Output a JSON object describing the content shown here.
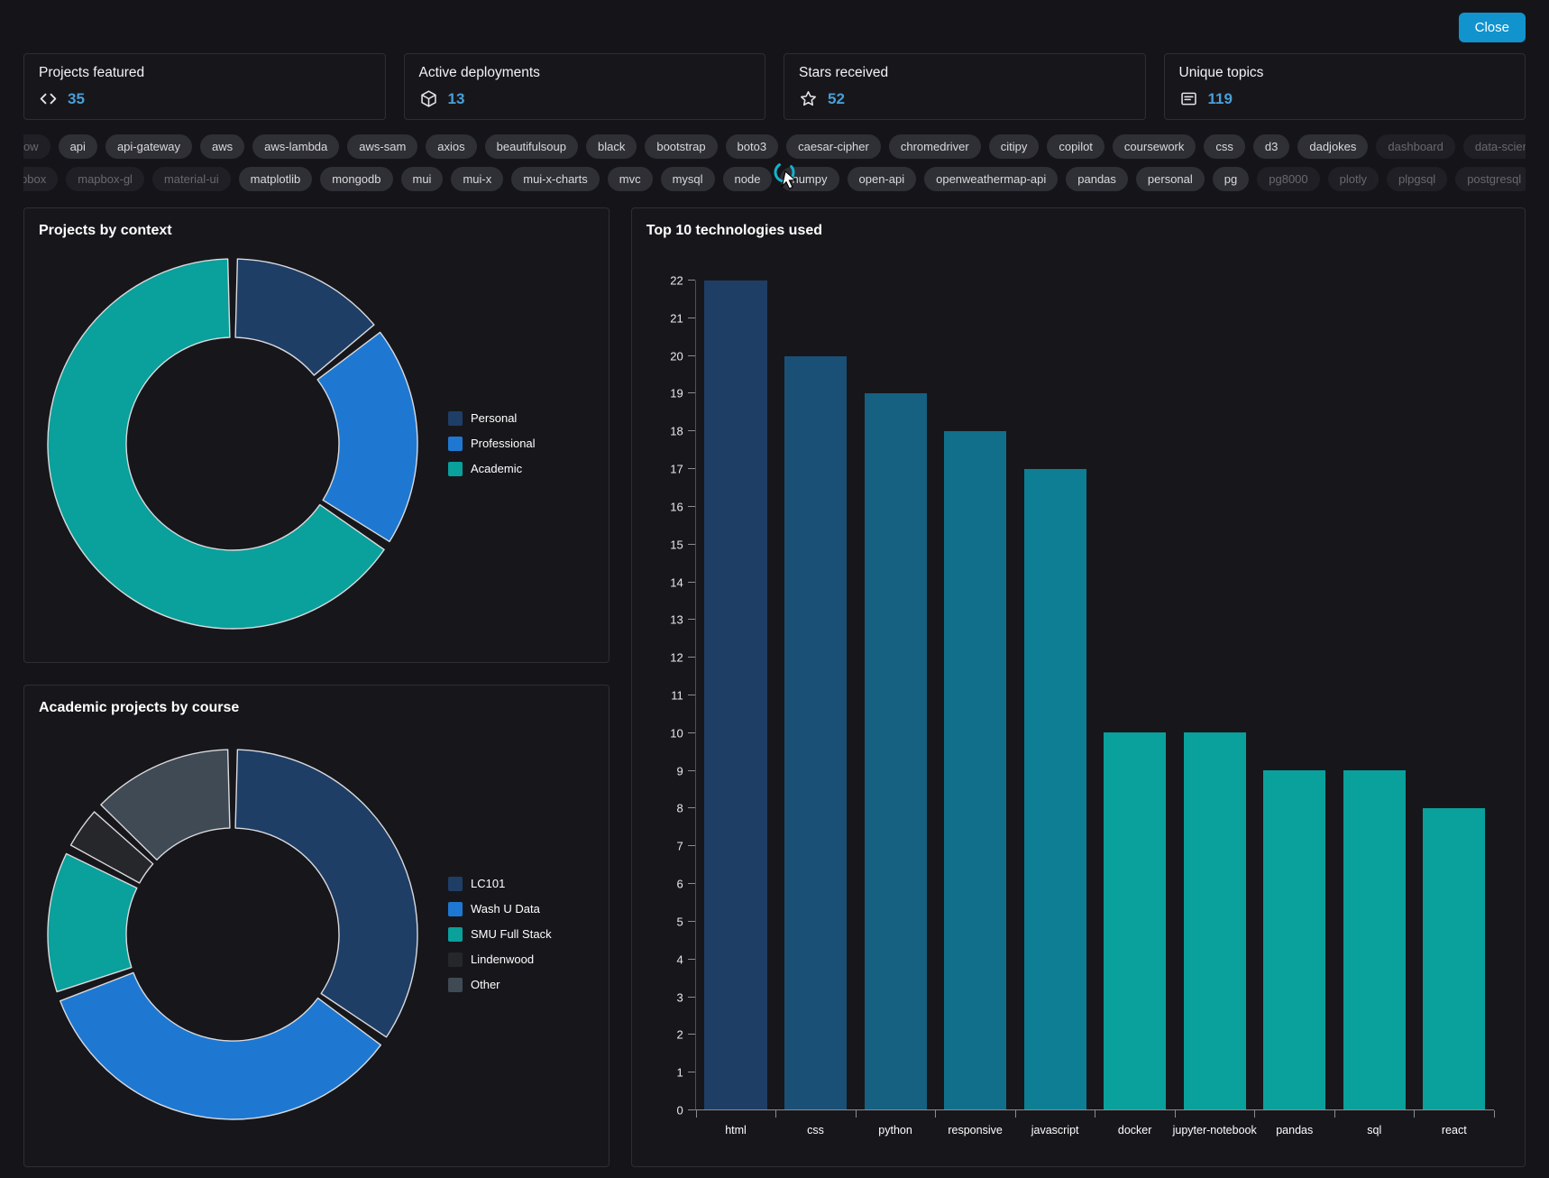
{
  "header": {
    "close_label": "Close"
  },
  "colors": {
    "page_background": "#151519",
    "card_background": "#17171b",
    "card_border": "#2d2d34",
    "chip_background": "#2f2f36",
    "chip_text": "#d9dadd",
    "value_blue": "#4a9fd8",
    "close_button": "#1193ce",
    "cursor_spinner": "#14b3cf",
    "pie_stroke": "#d9dadd"
  },
  "stats": [
    {
      "label": "Projects featured",
      "value": "35",
      "icon": "code-icon"
    },
    {
      "label": "Active deployments",
      "value": "13",
      "icon": "package-icon"
    },
    {
      "label": "Stars received",
      "value": "52",
      "icon": "star-icon"
    },
    {
      "label": "Unique topics",
      "value": "119",
      "icon": "topics-icon"
    }
  ],
  "topics": {
    "rows": [
      [
        {
          "label": "airflow",
          "faded": true
        },
        {
          "label": "api",
          "faded": false
        },
        {
          "label": "api-gateway",
          "faded": false
        },
        {
          "label": "aws",
          "faded": false
        },
        {
          "label": "aws-lambda",
          "faded": false
        },
        {
          "label": "aws-sam",
          "faded": false
        },
        {
          "label": "axios",
          "faded": false
        },
        {
          "label": "beautifulsoup",
          "faded": false
        },
        {
          "label": "black",
          "faded": false
        },
        {
          "label": "bootstrap",
          "faded": false
        },
        {
          "label": "boto3",
          "faded": false
        },
        {
          "label": "caesar-cipher",
          "faded": false
        },
        {
          "label": "chromedriver",
          "faded": false
        },
        {
          "label": "citipy",
          "faded": false
        },
        {
          "label": "copilot",
          "faded": false
        },
        {
          "label": "coursework",
          "faded": false
        },
        {
          "label": "css",
          "faded": false
        },
        {
          "label": "d3",
          "faded": false
        },
        {
          "label": "dadjokes",
          "faded": false
        },
        {
          "label": "dashboard",
          "faded": true
        },
        {
          "label": "data-science",
          "faded": true
        }
      ],
      [
        {
          "label": "mapbox",
          "faded": true
        },
        {
          "label": "mapbox-gl",
          "faded": true
        },
        {
          "label": "material-ui",
          "faded": true
        },
        {
          "label": "matplotlib",
          "faded": false
        },
        {
          "label": "mongodb",
          "faded": false
        },
        {
          "label": "mui",
          "faded": false
        },
        {
          "label": "mui-x",
          "faded": false
        },
        {
          "label": "mui-x-charts",
          "faded": false
        },
        {
          "label": "mvc",
          "faded": false
        },
        {
          "label": "mysql",
          "faded": false
        },
        {
          "label": "node",
          "faded": false
        },
        {
          "label": "numpy",
          "faded": false
        },
        {
          "label": "open-api",
          "faded": false
        },
        {
          "label": "openweathermap-api",
          "faded": false
        },
        {
          "label": "pandas",
          "faded": false
        },
        {
          "label": "personal",
          "faded": false
        },
        {
          "label": "pg",
          "faded": false
        },
        {
          "label": "pg8000",
          "faded": true
        },
        {
          "label": "plotly",
          "faded": true
        },
        {
          "label": "plpgsql",
          "faded": true
        },
        {
          "label": "postgresql",
          "faded": true
        }
      ]
    ]
  },
  "chart_data": [
    {
      "id": "projects_by_context",
      "type": "pie",
      "title": "Projects by context",
      "labels": [
        "Personal",
        "Professional",
        "Academic"
      ],
      "values": [
        5,
        7,
        23
      ],
      "colors": [
        "#1f3e66",
        "#1e78d2",
        "#0aa09b"
      ],
      "donut": true,
      "legend_position": "right"
    },
    {
      "id": "academic_projects_by_course",
      "type": "pie",
      "title": "Academic projects by course",
      "labels": [
        "LC101",
        "Wash U Data",
        "SMU Full Stack",
        "Lindenwood",
        "Other"
      ],
      "values": [
        8,
        8,
        3,
        1,
        3
      ],
      "colors": [
        "#1f3e66",
        "#1e78d2",
        "#0aa09b",
        "#25272b",
        "#3f4a55"
      ],
      "donut": true,
      "legend_position": "right"
    },
    {
      "id": "top_technologies",
      "type": "bar",
      "title": "Top 10 technologies used",
      "categories": [
        "html",
        "css",
        "python",
        "responsive",
        "javascript",
        "docker",
        "jupyter-notebook",
        "pandas",
        "sql",
        "react"
      ],
      "values": [
        22,
        20,
        19,
        18,
        17,
        10,
        10,
        9,
        9,
        8
      ],
      "colors": [
        "#1f3e66",
        "#1a5076",
        "#166081",
        "#116f8b",
        "#0d7e93",
        "#0aa09b",
        "#0aa09b",
        "#0aa09b",
        "#0aa09b",
        "#0aa09b"
      ],
      "ylim": [
        0,
        22
      ],
      "ytick_step": 1,
      "xlabel": "",
      "ylabel": "",
      "grid": false,
      "legend": false
    }
  ]
}
